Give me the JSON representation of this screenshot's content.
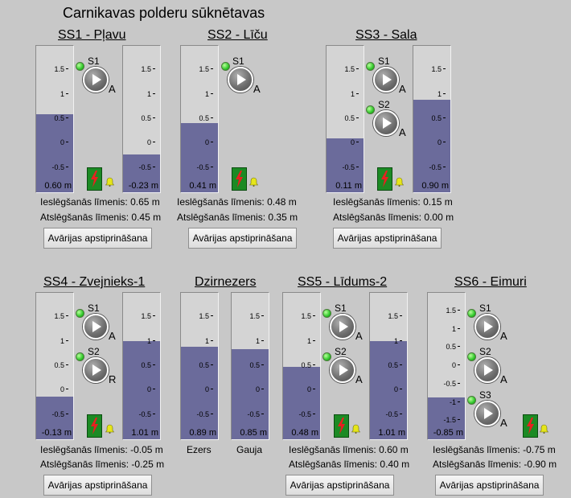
{
  "title": "Carnikavas polderu sūknētavas",
  "ack_button": "Avārijas apstiprināšana",
  "on_level_label": "Ieslēgšanās līmenis:",
  "off_level_label": "Atslēgšanās līmenis:",
  "scale_std": [
    "1.5",
    "1",
    "0.5",
    "0",
    "-0.5"
  ],
  "scale_ss6": [
    "1.5",
    "1",
    "0.5",
    "0",
    "-0.5",
    "-1",
    "-1.5"
  ],
  "ss1": {
    "name": "SS1 - Pļavu",
    "g1": {
      "value": "0.60 m",
      "level": 0.6
    },
    "g2": {
      "value": "-0.23 m",
      "level": -0.23
    },
    "pumps": [
      {
        "label": "S1",
        "mode": "A"
      }
    ],
    "on_level": "0.65 m",
    "off_level": "0.45 m"
  },
  "ss2": {
    "name": "SS2 - Līču",
    "g1": {
      "value": "0.41 m",
      "level": 0.41
    },
    "pumps": [
      {
        "label": "S1",
        "mode": "A"
      }
    ],
    "on_level": "0.48 m",
    "off_level": "0.35 m"
  },
  "ss3": {
    "name": "SS3 - Sala",
    "g1": {
      "value": "0.11 m",
      "level": 0.11
    },
    "g2": {
      "value": "0.90 m",
      "level": 0.9
    },
    "pumps": [
      {
        "label": "S1",
        "mode": "A"
      },
      {
        "label": "S2",
        "mode": "A"
      }
    ],
    "on_level": "0.15 m",
    "off_level": "0.00 m"
  },
  "ss4": {
    "name": "SS4 - Zvejnieks-1",
    "g1": {
      "value": "-0.13 m",
      "level": -0.13
    },
    "g2": {
      "value": "1.01 m",
      "level": 1.01
    },
    "pumps": [
      {
        "label": "S1",
        "mode": "A"
      },
      {
        "label": "S2",
        "mode": "R"
      }
    ],
    "on_level": "-0.05 m",
    "off_level": "-0.25 m"
  },
  "dz": {
    "name": "Dzirnezers",
    "g1": {
      "value": "0.89 m",
      "level": 0.89,
      "label": "Ezers"
    },
    "g2": {
      "value": "0.85 m",
      "level": 0.85,
      "label": "Gauja"
    }
  },
  "ss5": {
    "name": "SS5 - Līdums-2",
    "g1": {
      "value": "0.48 m",
      "level": 0.48
    },
    "g2": {
      "value": "1.01 m",
      "level": 1.01
    },
    "pumps": [
      {
        "label": "S1",
        "mode": "A"
      },
      {
        "label": "S2",
        "mode": "A"
      }
    ],
    "on_level": "0.60 m",
    "off_level": "0.40 m"
  },
  "ss6": {
    "name": "SS6 - Eimuri",
    "g1": {
      "value": "-0.85 m",
      "level": -0.85
    },
    "pumps": [
      {
        "label": "S1",
        "mode": "A"
      },
      {
        "label": "S2",
        "mode": "A"
      },
      {
        "label": "S3",
        "mode": "A"
      }
    ],
    "on_level": "-0.75 m",
    "off_level": "-0.90 m"
  },
  "colors": {
    "fill": "#6b6b9b",
    "background": "#c8c8c8",
    "led": "#2fc72a",
    "alarm": "#1c8a24"
  },
  "icons": {
    "pump": "play-icon",
    "alarm": "lightning-icon",
    "bell": "bell-icon"
  }
}
